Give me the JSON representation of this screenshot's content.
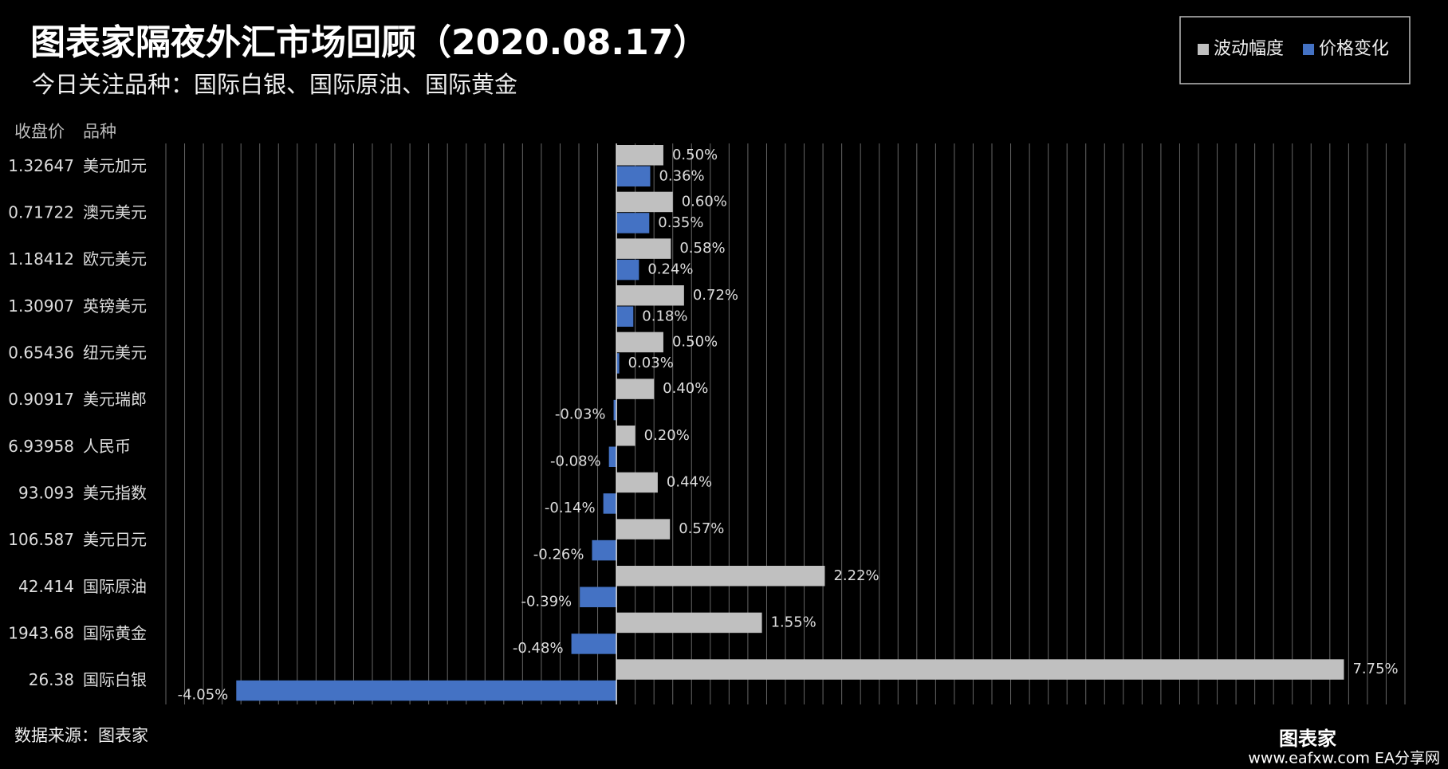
{
  "chart_data": {
    "type": "bar",
    "orientation": "horizontal",
    "title": "图表家隔夜外汇市场回顾（2020.08.17）",
    "subtitle": "今日关注品种：国际白银、国际原油、国际黄金",
    "column_headers": [
      "收盘价",
      "品种"
    ],
    "close_prices": [
      "1.32647",
      "0.71722",
      "1.18412",
      "1.30907",
      "0.65436",
      "0.90917",
      "6.93958",
      "93.093",
      "106.587",
      "42.414",
      "1943.68",
      "26.38"
    ],
    "categories": [
      "美元加元",
      "澳元美元",
      "欧元美元",
      "英镑美元",
      "纽元美元",
      "美元瑞郎",
      "人民币",
      "美元指数",
      "美元日元",
      "国际原油",
      "国际黄金",
      "国际白银"
    ],
    "series": [
      {
        "name": "波动幅度",
        "color": "#c0c0c0",
        "values": [
          0.5,
          0.6,
          0.58,
          0.72,
          0.5,
          0.4,
          0.2,
          0.44,
          0.57,
          2.22,
          1.55,
          7.75
        ],
        "value_labels": [
          "0.50%",
          "0.60%",
          "0.58%",
          "0.72%",
          "0.50%",
          "0.40%",
          "0.20%",
          "0.44%",
          "0.57%",
          "2.22%",
          "1.55%",
          "7.75%"
        ]
      },
      {
        "name": "价格变化",
        "color": "#4472c4",
        "values": [
          0.36,
          0.35,
          0.24,
          0.18,
          0.03,
          -0.03,
          -0.08,
          -0.14,
          -0.26,
          -0.39,
          -0.48,
          -4.05
        ],
        "value_labels": [
          "0.36%",
          "0.35%",
          "0.24%",
          "0.18%",
          "0.03%",
          "-0.03%",
          "-0.08%",
          "-0.14%",
          "-0.26%",
          "-0.39%",
          "-0.48%",
          "-4.05%"
        ]
      }
    ],
    "xlim": [
      -4.8,
      8.4
    ],
    "xticks": [
      -4.8,
      -4.6,
      -4.4,
      -4.2,
      -4.0,
      -3.8,
      -3.6,
      -3.4,
      -3.2,
      -3.0,
      -2.8,
      -2.6,
      -2.4,
      -2.2,
      -2.0,
      -1.8,
      -1.6,
      -1.4,
      -1.2,
      -1.0,
      -0.8,
      -0.6,
      -0.4,
      -0.2,
      0,
      0.2,
      0.4,
      0.6,
      0.8,
      1.0,
      1.2,
      1.4,
      1.6,
      1.8,
      2.0,
      2.2,
      2.4,
      2.6,
      2.8,
      3.0,
      3.2,
      3.4,
      3.6,
      3.8,
      4.0,
      4.2,
      4.4,
      4.6,
      4.8,
      5.0,
      5.2,
      5.4,
      5.6,
      5.8,
      6.0,
      6.2,
      6.4,
      6.6,
      6.8,
      7.0,
      7.2,
      7.4,
      7.6,
      7.8,
      8.0,
      8.2,
      8.4
    ],
    "grid": true,
    "legend": "top-right",
    "source": "数据来源：图表家",
    "watermark": "www.eafxw.com  EA分享网",
    "logo": "图表家"
  }
}
